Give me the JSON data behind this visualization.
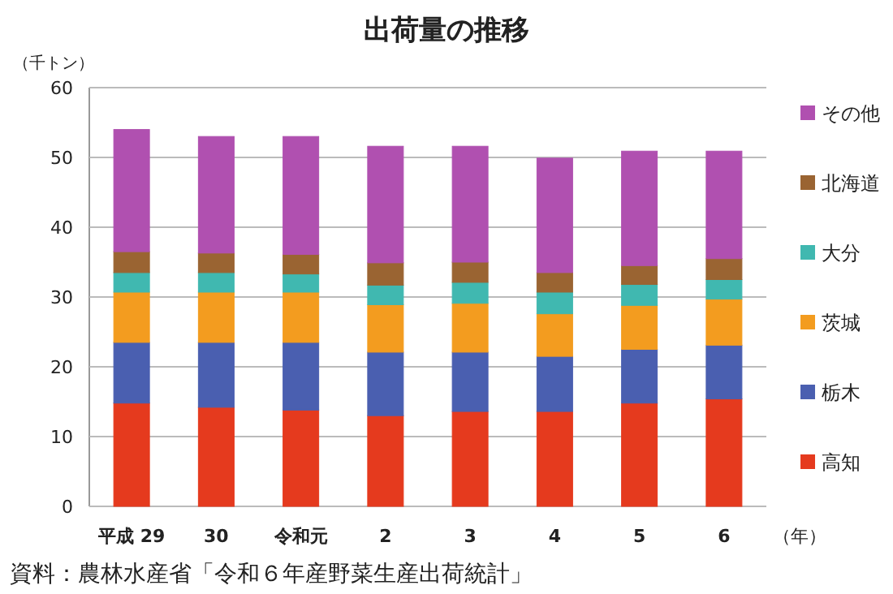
{
  "chart_data": {
    "type": "bar",
    "stacked": true,
    "title": "出荷量の推移",
    "ylabel": "（千トン）",
    "xlabel": "（年）",
    "categories": [
      "平成 29",
      "30",
      "令和元",
      "2",
      "3",
      "4",
      "5",
      "6"
    ],
    "series": [
      {
        "name": "高知",
        "color": "#e53a1e",
        "values": [
          14.8,
          14.2,
          13.8,
          13.0,
          13.6,
          13.6,
          14.8,
          15.4
        ]
      },
      {
        "name": "栃木",
        "color": "#4a5fb0",
        "values": [
          8.7,
          9.3,
          9.7,
          9.1,
          8.5,
          7.9,
          7.7,
          7.7
        ]
      },
      {
        "name": "茨城",
        "color": "#f39c1f",
        "values": [
          7.2,
          7.2,
          7.2,
          6.8,
          7.0,
          6.1,
          6.3,
          6.6
        ]
      },
      {
        "name": "大分",
        "color": "#40b8b0",
        "values": [
          2.8,
          2.8,
          2.6,
          2.8,
          3.0,
          3.1,
          3.0,
          2.8
        ]
      },
      {
        "name": "北海道",
        "color": "#9a6432",
        "values": [
          3.0,
          2.8,
          2.8,
          3.2,
          2.9,
          2.8,
          2.7,
          3.0
        ]
      },
      {
        "name": "その他",
        "color": "#b050b0",
        "values": [
          17.5,
          16.7,
          16.9,
          16.7,
          16.6,
          16.4,
          16.4,
          15.4
        ]
      }
    ],
    "ylim": [
      0,
      60
    ],
    "yticks": [
      0,
      10,
      20,
      30,
      40,
      50,
      60
    ],
    "grid": "y",
    "legend": "right",
    "annotations": [
      "資料：農林水産省「令和６年産野菜生産出荷統計」"
    ]
  }
}
